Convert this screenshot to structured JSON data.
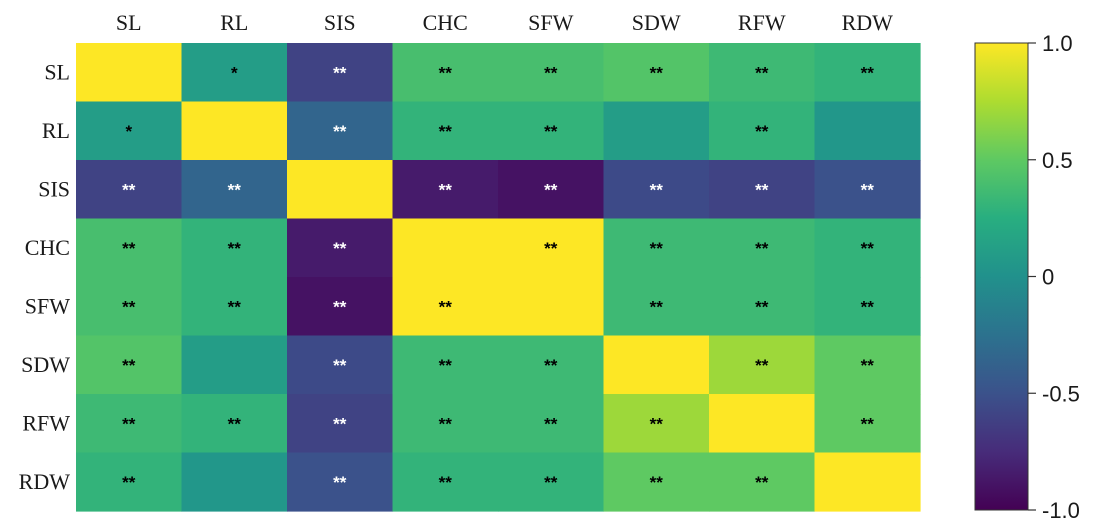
{
  "chart_data": {
    "type": "heatmap",
    "columns": [
      "SL",
      "RL",
      "SIS",
      "CHC",
      "SFW",
      "SDW",
      "RFW",
      "RDW"
    ],
    "rows": [
      "SL",
      "RL",
      "SIS",
      "CHC",
      "SFW",
      "SDW",
      "RFW",
      "RDW"
    ],
    "values": [
      [
        1.0,
        0.1,
        -0.6,
        0.4,
        0.4,
        0.45,
        0.35,
        0.3
      ],
      [
        0.1,
        1.0,
        -0.35,
        0.3,
        0.3,
        0.1,
        0.3,
        0.05
      ],
      [
        -0.6,
        -0.35,
        1.0,
        -0.85,
        -0.9,
        -0.55,
        -0.6,
        -0.5
      ],
      [
        0.4,
        0.3,
        -0.85,
        1.0,
        1.0,
        0.35,
        0.35,
        0.3
      ],
      [
        0.4,
        0.3,
        -0.9,
        1.0,
        1.0,
        0.35,
        0.35,
        0.3
      ],
      [
        0.45,
        0.1,
        -0.55,
        0.35,
        0.35,
        1.0,
        0.7,
        0.5
      ],
      [
        0.35,
        0.3,
        -0.6,
        0.35,
        0.35,
        0.7,
        1.0,
        0.5
      ],
      [
        0.3,
        0.05,
        -0.5,
        0.3,
        0.3,
        0.5,
        0.5,
        1.0
      ]
    ],
    "significance": [
      [
        "",
        "*",
        "**",
        "**",
        "**",
        "**",
        "**",
        "**"
      ],
      [
        "*",
        "",
        "**",
        "**",
        "**",
        "",
        "**",
        ""
      ],
      [
        "**",
        "**",
        "",
        "**",
        "**",
        "**",
        "**",
        "**"
      ],
      [
        "**",
        "**",
        "**",
        "",
        "**",
        "**",
        "**",
        "**"
      ],
      [
        "**",
        "**",
        "**",
        "**",
        "",
        "**",
        "**",
        "**"
      ],
      [
        "**",
        "",
        "**",
        "**",
        "**",
        "",
        "**",
        "**"
      ],
      [
        "**",
        "**",
        "**",
        "**",
        "**",
        "**",
        "",
        "**"
      ],
      [
        "**",
        "",
        "**",
        "**",
        "**",
        "**",
        "**",
        ""
      ]
    ],
    "colorbar": {
      "range": [
        -1.0,
        1.0
      ],
      "ticks": [
        1.0,
        0.5,
        0,
        -0.5,
        -1.0
      ],
      "tick_labels": [
        "1.0",
        "0.5",
        "0",
        "-0.5",
        "-1.0"
      ],
      "colormap": "viridis"
    },
    "sig_colors": {
      "on_dark": "#ffffff",
      "on_light": "#000000"
    }
  }
}
